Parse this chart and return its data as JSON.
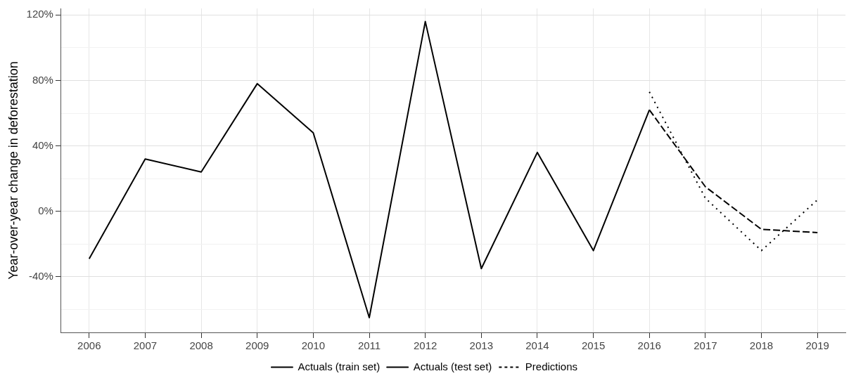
{
  "chart_data": {
    "type": "line",
    "ylabel": "Year-over-year change in deforestation",
    "categories": [
      "2006",
      "2007",
      "2008",
      "2009",
      "2010",
      "2011",
      "2012",
      "2013",
      "2014",
      "2015",
      "2016",
      "2017",
      "2018",
      "2019"
    ],
    "series": [
      {
        "name": "Actuals (train set)",
        "color": "#000000",
        "line_style": "solid",
        "values": [
          -29,
          32,
          24,
          78,
          48,
          -65,
          116,
          -35,
          36,
          -24,
          62,
          null,
          null,
          null
        ]
      },
      {
        "name": "Actuals (test set)",
        "color": "#000000",
        "line_style": "dashed",
        "values": [
          null,
          null,
          null,
          null,
          null,
          null,
          null,
          null,
          null,
          null,
          62,
          15,
          -11,
          -13
        ]
      },
      {
        "name": "Predictions",
        "color": "#000000",
        "line_style": "dotted",
        "values": [
          null,
          null,
          null,
          null,
          null,
          null,
          null,
          null,
          null,
          null,
          73,
          8,
          -24,
          7
        ]
      }
    ],
    "ylim": [
      -74,
      124
    ],
    "yticks": [
      {
        "value": -60,
        "label": null
      },
      {
        "value": -40,
        "label": "-40%"
      },
      {
        "value": -20,
        "label": null
      },
      {
        "value": 0,
        "label": "0%"
      },
      {
        "value": 20,
        "label": null
      },
      {
        "value": 40,
        "label": "40%"
      },
      {
        "value": 60,
        "label": null
      },
      {
        "value": 80,
        "label": "80%"
      },
      {
        "value": 100,
        "label": null
      },
      {
        "value": 120,
        "label": "120%"
      }
    ],
    "grid": true,
    "legend": "bottom",
    "marker": "none"
  }
}
